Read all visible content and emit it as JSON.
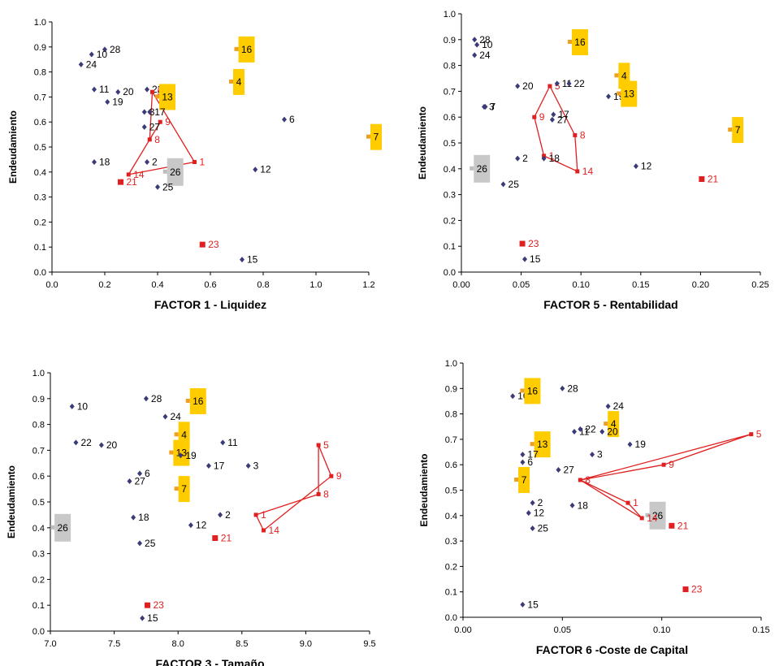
{
  "colors": {
    "dark": "#3b3b78",
    "orange": "#f0a020",
    "red": "#e02020",
    "gray": "#bdbdbd",
    "yellow_box": "#ffcc00",
    "gray_box": "#c8c8c8",
    "line": "#e02020"
  },
  "chart_data": [
    {
      "type": "scatter",
      "xlabel": "FACTOR 1 - Liquidez",
      "ylabel": "Endeudamiento",
      "xlim": [
        0,
        1.2
      ],
      "ylim": [
        0,
        1
      ],
      "xticks": [
        "0.0",
        "0.2",
        "0.4",
        "0.6",
        "0.8",
        "1.0",
        "1.2"
      ],
      "yticks": [
        "0.0",
        "0.1",
        "0.2",
        "0.3",
        "0.4",
        "0.5",
        "0.6",
        "0.7",
        "0.8",
        "0.9",
        "1.0"
      ],
      "polygon": [
        "9",
        "14",
        "1",
        "5",
        "8",
        "9"
      ],
      "points": [
        {
          "id": "28",
          "x": 0.2,
          "y": 0.89,
          "style": "dark"
        },
        {
          "id": "10",
          "x": 0.15,
          "y": 0.87,
          "style": "dark"
        },
        {
          "id": "24",
          "x": 0.11,
          "y": 0.83,
          "style": "dark"
        },
        {
          "id": "16",
          "x": 0.7,
          "y": 0.89,
          "style": "orange_box"
        },
        {
          "id": "4",
          "x": 0.68,
          "y": 0.76,
          "style": "orange_box"
        },
        {
          "id": "11",
          "x": 0.16,
          "y": 0.73,
          "style": "dark"
        },
        {
          "id": "20",
          "x": 0.25,
          "y": 0.72,
          "style": "dark"
        },
        {
          "id": "19",
          "x": 0.21,
          "y": 0.68,
          "style": "dark"
        },
        {
          "id": "22",
          "x": 0.36,
          "y": 0.73,
          "style": "dark"
        },
        {
          "id": "5",
          "x": 0.38,
          "y": 0.72,
          "style": "red"
        },
        {
          "id": "13",
          "x": 0.4,
          "y": 0.7,
          "style": "orange_box"
        },
        {
          "id": "3",
          "x": 0.35,
          "y": 0.64,
          "style": "dark"
        },
        {
          "id": "17",
          "x": 0.37,
          "y": 0.64,
          "style": "dark"
        },
        {
          "id": "6",
          "x": 0.88,
          "y": 0.61,
          "style": "dark"
        },
        {
          "id": "9",
          "x": 0.41,
          "y": 0.6,
          "style": "red"
        },
        {
          "id": "27",
          "x": 0.35,
          "y": 0.58,
          "style": "dark"
        },
        {
          "id": "8",
          "x": 0.37,
          "y": 0.53,
          "style": "red"
        },
        {
          "id": "7",
          "x": 1.2,
          "y": 0.54,
          "style": "orange_box"
        },
        {
          "id": "2",
          "x": 0.36,
          "y": 0.44,
          "style": "dark"
        },
        {
          "id": "18",
          "x": 0.16,
          "y": 0.44,
          "style": "dark"
        },
        {
          "id": "1",
          "x": 0.54,
          "y": 0.44,
          "style": "red"
        },
        {
          "id": "12",
          "x": 0.77,
          "y": 0.41,
          "style": "dark"
        },
        {
          "id": "26",
          "x": 0.43,
          "y": 0.4,
          "style": "gray_box"
        },
        {
          "id": "14",
          "x": 0.29,
          "y": 0.39,
          "style": "red"
        },
        {
          "id": "21",
          "x": 0.26,
          "y": 0.36,
          "style": "red_sq"
        },
        {
          "id": "25",
          "x": 0.4,
          "y": 0.34,
          "style": "dark"
        },
        {
          "id": "23",
          "x": 0.57,
          "y": 0.11,
          "style": "red_sq"
        },
        {
          "id": "15",
          "x": 0.72,
          "y": 0.05,
          "style": "dark"
        }
      ]
    },
    {
      "type": "scatter",
      "xlabel": "FACTOR 5 - Rentabilidad",
      "ylabel": "Endeudamiento",
      "xlim": [
        0,
        0.25
      ],
      "ylim": [
        0,
        1
      ],
      "xticks": [
        "0.00",
        "0.05",
        "0.10",
        "0.15",
        "0.20",
        "0.25"
      ],
      "yticks": [
        "0.0",
        "0.1",
        "0.2",
        "0.3",
        "0.4",
        "0.5",
        "0.6",
        "0.7",
        "0.8",
        "0.9",
        "1.0"
      ],
      "polygon": [
        "5",
        "8",
        "14",
        "1",
        "9",
        "5"
      ],
      "points": [
        {
          "id": "28",
          "x": 0.011,
          "y": 0.9,
          "style": "dark"
        },
        {
          "id": "10",
          "x": 0.013,
          "y": 0.88,
          "style": "dark"
        },
        {
          "id": "24",
          "x": 0.011,
          "y": 0.84,
          "style": "dark"
        },
        {
          "id": "16",
          "x": 0.091,
          "y": 0.89,
          "style": "orange_box"
        },
        {
          "id": "4",
          "x": 0.13,
          "y": 0.76,
          "style": "orange_box"
        },
        {
          "id": "20",
          "x": 0.047,
          "y": 0.72,
          "style": "dark"
        },
        {
          "id": "5",
          "x": 0.074,
          "y": 0.72,
          "style": "red"
        },
        {
          "id": "11",
          "x": 0.08,
          "y": 0.73,
          "style": "dark"
        },
        {
          "id": "22",
          "x": 0.09,
          "y": 0.73,
          "style": "dark"
        },
        {
          "id": "19",
          "x": 0.123,
          "y": 0.68,
          "style": "dark"
        },
        {
          "id": "13",
          "x": 0.132,
          "y": 0.69,
          "style": "orange_box"
        },
        {
          "id": "3",
          "x": 0.019,
          "y": 0.64,
          "style": "dark"
        },
        {
          "id": "7",
          "x": 0.02,
          "y": 0.64,
          "style": "dark"
        },
        {
          "id": "9",
          "x": 0.061,
          "y": 0.6,
          "style": "red"
        },
        {
          "id": "17",
          "x": 0.077,
          "y": 0.61,
          "style": "dark"
        },
        {
          "id": "27",
          "x": 0.076,
          "y": 0.59,
          "style": "dark"
        },
        {
          "id": "8",
          "x": 0.095,
          "y": 0.53,
          "style": "red"
        },
        {
          "id": "7",
          "x": 0.225,
          "y": 0.55,
          "style": "orange_box"
        },
        {
          "id": "1",
          "x": 0.069,
          "y": 0.45,
          "style": "red"
        },
        {
          "id": "2",
          "x": 0.047,
          "y": 0.44,
          "style": "dark"
        },
        {
          "id": "18",
          "x": 0.069,
          "y": 0.44,
          "style": "dark"
        },
        {
          "id": "12",
          "x": 0.146,
          "y": 0.41,
          "style": "dark"
        },
        {
          "id": "26",
          "x": 0.009,
          "y": 0.4,
          "style": "gray_box"
        },
        {
          "id": "14",
          "x": 0.097,
          "y": 0.39,
          "style": "red"
        },
        {
          "id": "21",
          "x": 0.201,
          "y": 0.36,
          "style": "red_sq"
        },
        {
          "id": "25",
          "x": 0.035,
          "y": 0.34,
          "style": "dark"
        },
        {
          "id": "23",
          "x": 0.051,
          "y": 0.11,
          "style": "red_sq"
        },
        {
          "id": "15",
          "x": 0.053,
          "y": 0.05,
          "style": "dark"
        }
      ]
    },
    {
      "type": "scatter",
      "xlabel": "FACTOR 3 - Tamaño",
      "ylabel": "Endeudamiento",
      "xlim": [
        7.0,
        9.5
      ],
      "ylim": [
        0,
        1
      ],
      "xticks": [
        "7.0",
        "7.5",
        "8.0",
        "8.5",
        "9.0",
        "9.5"
      ],
      "yticks": [
        "0.0",
        "0.1",
        "0.2",
        "0.3",
        "0.4",
        "0.5",
        "0.6",
        "0.7",
        "0.8",
        "0.9",
        "1.0"
      ],
      "polygon": [
        "5",
        "9",
        "14",
        "1",
        "8",
        "5"
      ],
      "points": [
        {
          "id": "28",
          "x": 7.75,
          "y": 0.9,
          "style": "dark"
        },
        {
          "id": "10",
          "x": 7.17,
          "y": 0.87,
          "style": "dark"
        },
        {
          "id": "16",
          "x": 8.08,
          "y": 0.89,
          "style": "orange_box"
        },
        {
          "id": "24",
          "x": 7.9,
          "y": 0.83,
          "style": "dark"
        },
        {
          "id": "4",
          "x": 7.99,
          "y": 0.76,
          "style": "orange_box"
        },
        {
          "id": "22",
          "x": 7.2,
          "y": 0.73,
          "style": "dark"
        },
        {
          "id": "20",
          "x": 7.4,
          "y": 0.72,
          "style": "dark"
        },
        {
          "id": "11",
          "x": 8.35,
          "y": 0.73,
          "style": "dark"
        },
        {
          "id": "5",
          "x": 9.1,
          "y": 0.72,
          "style": "red"
        },
        {
          "id": "13",
          "x": 7.95,
          "y": 0.69,
          "style": "orange_box"
        },
        {
          "id": "19",
          "x": 8.02,
          "y": 0.68,
          "style": "dark"
        },
        {
          "id": "17",
          "x": 8.24,
          "y": 0.64,
          "style": "dark"
        },
        {
          "id": "3",
          "x": 8.55,
          "y": 0.64,
          "style": "dark"
        },
        {
          "id": "6",
          "x": 7.7,
          "y": 0.61,
          "style": "dark"
        },
        {
          "id": "9",
          "x": 9.2,
          "y": 0.6,
          "style": "red"
        },
        {
          "id": "27",
          "x": 7.62,
          "y": 0.58,
          "style": "dark"
        },
        {
          "id": "7",
          "x": 7.99,
          "y": 0.55,
          "style": "orange_box"
        },
        {
          "id": "8",
          "x": 9.1,
          "y": 0.53,
          "style": "red"
        },
        {
          "id": "2",
          "x": 8.33,
          "y": 0.45,
          "style": "dark"
        },
        {
          "id": "1",
          "x": 8.61,
          "y": 0.45,
          "style": "red"
        },
        {
          "id": "18",
          "x": 7.65,
          "y": 0.44,
          "style": "dark"
        },
        {
          "id": "12",
          "x": 8.1,
          "y": 0.41,
          "style": "dark"
        },
        {
          "id": "26",
          "x": 7.02,
          "y": 0.4,
          "style": "gray_box"
        },
        {
          "id": "14",
          "x": 8.67,
          "y": 0.39,
          "style": "red"
        },
        {
          "id": "21",
          "x": 8.29,
          "y": 0.36,
          "style": "red_sq"
        },
        {
          "id": "25",
          "x": 7.7,
          "y": 0.34,
          "style": "dark"
        },
        {
          "id": "23",
          "x": 7.76,
          "y": 0.1,
          "style": "red_sq"
        },
        {
          "id": "15",
          "x": 7.72,
          "y": 0.05,
          "style": "dark"
        }
      ]
    },
    {
      "type": "scatter",
      "xlabel": "FACTOR 6 -Coste de Capital",
      "ylabel": "Endeudamiento",
      "xlim": [
        0,
        0.15
      ],
      "ylim": [
        0,
        1
      ],
      "xticks": [
        "0.00",
        "0.05",
        "0.10",
        "0.15"
      ],
      "yticks": [
        "0.0",
        "0.1",
        "0.2",
        "0.3",
        "0.4",
        "0.5",
        "0.6",
        "0.7",
        "0.8",
        "0.9",
        "1.0"
      ],
      "polygon": [
        "5",
        "8",
        "14",
        "1",
        "8",
        "9",
        "5"
      ],
      "points": [
        {
          "id": "10",
          "x": 0.025,
          "y": 0.87,
          "style": "dark"
        },
        {
          "id": "16",
          "x": 0.03,
          "y": 0.89,
          "style": "orange_box"
        },
        {
          "id": "28",
          "x": 0.05,
          "y": 0.9,
          "style": "dark"
        },
        {
          "id": "24",
          "x": 0.073,
          "y": 0.83,
          "style": "dark"
        },
        {
          "id": "4",
          "x": 0.072,
          "y": 0.76,
          "style": "orange_box"
        },
        {
          "id": "11",
          "x": 0.056,
          "y": 0.73,
          "style": "dark"
        },
        {
          "id": "22",
          "x": 0.059,
          "y": 0.74,
          "style": "dark"
        },
        {
          "id": "20",
          "x": 0.07,
          "y": 0.73,
          "style": "dark"
        },
        {
          "id": "19",
          "x": 0.084,
          "y": 0.68,
          "style": "dark"
        },
        {
          "id": "5",
          "x": 0.145,
          "y": 0.72,
          "style": "red"
        },
        {
          "id": "13",
          "x": 0.035,
          "y": 0.68,
          "style": "orange_box"
        },
        {
          "id": "17",
          "x": 0.03,
          "y": 0.64,
          "style": "dark"
        },
        {
          "id": "3",
          "x": 0.065,
          "y": 0.64,
          "style": "dark"
        },
        {
          "id": "6",
          "x": 0.03,
          "y": 0.61,
          "style": "dark"
        },
        {
          "id": "9",
          "x": 0.101,
          "y": 0.6,
          "style": "red"
        },
        {
          "id": "27",
          "x": 0.048,
          "y": 0.58,
          "style": "dark"
        },
        {
          "id": "7",
          "x": 0.027,
          "y": 0.54,
          "style": "orange_box"
        },
        {
          "id": "8",
          "x": 0.059,
          "y": 0.54,
          "style": "red"
        },
        {
          "id": "1",
          "x": 0.083,
          "y": 0.45,
          "style": "red"
        },
        {
          "id": "2",
          "x": 0.035,
          "y": 0.45,
          "style": "dark"
        },
        {
          "id": "18",
          "x": 0.055,
          "y": 0.44,
          "style": "dark"
        },
        {
          "id": "12",
          "x": 0.033,
          "y": 0.41,
          "style": "dark"
        },
        {
          "id": "26",
          "x": 0.093,
          "y": 0.4,
          "style": "gray_box"
        },
        {
          "id": "14",
          "x": 0.09,
          "y": 0.39,
          "style": "red"
        },
        {
          "id": "21",
          "x": 0.105,
          "y": 0.36,
          "style": "red_sq"
        },
        {
          "id": "25",
          "x": 0.035,
          "y": 0.35,
          "style": "dark"
        },
        {
          "id": "23",
          "x": 0.112,
          "y": 0.11,
          "style": "red_sq"
        },
        {
          "id": "15",
          "x": 0.03,
          "y": 0.05,
          "style": "dark"
        }
      ]
    }
  ]
}
